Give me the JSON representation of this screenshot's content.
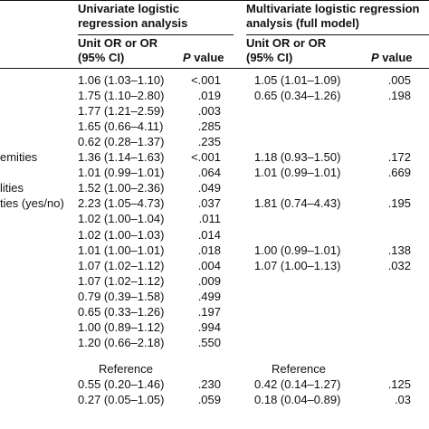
{
  "header": {
    "univariate_title_line1": "Univariate logistic",
    "univariate_title_line2": "regression analysis",
    "multivariate_title_line1": "Multivariate logistic regression",
    "multivariate_title_line2": "analysis (full model)",
    "or_label_line1": "Unit OR or OR",
    "or_label_line2": "(95% CI)",
    "p_label_italic": "P",
    "p_label_rest": " value"
  },
  "rows": [
    {
      "label": "",
      "uni_or": "1.06 (1.03–1.10)",
      "uni_p": "<.001",
      "multi_or": "1.05 (1.01–1.09)",
      "multi_p": ".005"
    },
    {
      "label": "",
      "uni_or": "1.75 (1.10–2.80)",
      "uni_p": ".019",
      "multi_or": "0.65 (0.34–1.26)",
      "multi_p": ".198"
    },
    {
      "label": "",
      "uni_or": "1.77 (1.21–2.59)",
      "uni_p": ".003",
      "multi_or": "",
      "multi_p": ""
    },
    {
      "label": "",
      "uni_or": "1.65 (0.66–4.11)",
      "uni_p": ".285",
      "multi_or": "",
      "multi_p": ""
    },
    {
      "label": "",
      "uni_or": "0.62 (0.28–1.37)",
      "uni_p": ".235",
      "multi_or": "",
      "multi_p": ""
    },
    {
      "label": "emities",
      "uni_or": "1.36 (1.14–1.63)",
      "uni_p": "<.001",
      "multi_or": "1.18 (0.93–1.50)",
      "multi_p": ".172"
    },
    {
      "label": "",
      "uni_or": "1.01 (0.99–1.01)",
      "uni_p": ".064",
      "multi_or": "1.01 (0.99–1.01)",
      "multi_p": ".669"
    },
    {
      "label": "lities",
      "uni_or": "1.52 (1.00–2.36)",
      "uni_p": ".049",
      "multi_or": "",
      "multi_p": ""
    },
    {
      "label": "ties (yes/no)",
      "uni_or": "2.23 (1.05–4.73)",
      "uni_p": ".037",
      "multi_or": "1.81 (0.74–4.43)",
      "multi_p": ".195"
    },
    {
      "label": "",
      "uni_or": "1.02 (1.00–1.04)",
      "uni_p": ".011",
      "multi_or": "",
      "multi_p": ""
    },
    {
      "label": "",
      "uni_or": "1.02 (1.00–1.03)",
      "uni_p": ".014",
      "multi_or": "",
      "multi_p": ""
    },
    {
      "label": "",
      "uni_or": "1.01 (1.00–1.01)",
      "uni_p": ".018",
      "multi_or": "1.00 (0.99–1.01)",
      "multi_p": ".138"
    },
    {
      "label": "",
      "uni_or": "1.07 (1.02–1.12)",
      "uni_p": ".004",
      "multi_or": "1.07 (1.00–1.13)",
      "multi_p": ".032"
    },
    {
      "label": "",
      "uni_or": "1.07 (1.02–1.12)",
      "uni_p": ".009",
      "multi_or": "",
      "multi_p": ""
    },
    {
      "label": "",
      "uni_or": "0.79 (0.39–1.58)",
      "uni_p": ".499",
      "multi_or": "",
      "multi_p": ""
    },
    {
      "label": "",
      "uni_or": "0.65 (0.33–1.26)",
      "uni_p": ".197",
      "multi_or": "",
      "multi_p": ""
    },
    {
      "label": "",
      "uni_or": "1.00 (0.89–1.12)",
      "uni_p": ".994",
      "multi_or": "",
      "multi_p": ""
    },
    {
      "label": "",
      "uni_or": "1.20 (0.66–2.18)",
      "uni_p": ".550",
      "multi_or": "",
      "multi_p": ""
    }
  ],
  "reference": {
    "uni_label": "Reference",
    "multi_label": "Reference"
  },
  "rows_after_reference": [
    {
      "uni_or": "0.55 (0.20–1.46)",
      "uni_p": ".230",
      "multi_or": "0.42 (0.14–1.27)",
      "multi_p": ".125"
    },
    {
      "uni_or": "0.27 (0.05–1.05)",
      "uni_p": ".059",
      "multi_or": "0.18 (0.04–0.89)",
      "multi_p": ".03"
    }
  ]
}
